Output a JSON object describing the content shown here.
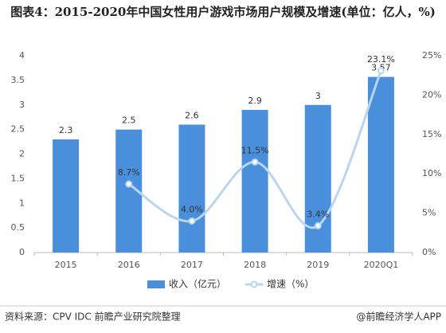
{
  "chart_data": {
    "type": "bar-line",
    "title": "图表4：2015-2020年中国女性用户游戏市场用户规模及增速(单位：亿人，%)",
    "categories": [
      "2015",
      "2016",
      "2017",
      "2018",
      "2019",
      "2020Q1"
    ],
    "series": [
      {
        "name": "收入（亿元）",
        "type": "bar",
        "color": "#4a8fdc",
        "values": [
          2.3,
          2.5,
          2.6,
          2.9,
          3,
          3.57
        ]
      },
      {
        "name": "增速（%）",
        "type": "line",
        "axis": "y2",
        "color": "#b9d5f0",
        "values": [
          null,
          8.7,
          4.0,
          11.5,
          3.4,
          23.1
        ],
        "value_labels": [
          null,
          "8.7%",
          "4.0%",
          "11.5%",
          "3.4%",
          "23.1%"
        ]
      }
    ],
    "ylim": [
      0,
      4
    ],
    "yticks": [
      0,
      0.5,
      1,
      1.5,
      2,
      2.5,
      3,
      3.5,
      4
    ],
    "y2lim": [
      0,
      25
    ],
    "y2ticks": [
      {
        "value": 0,
        "label": "0%"
      },
      {
        "value": 5,
        "label": "5%"
      },
      {
        "value": 10,
        "label": "10%"
      },
      {
        "value": 15,
        "label": "15%"
      },
      {
        "value": 20,
        "label": "20%"
      },
      {
        "value": 25,
        "label": "25%"
      }
    ],
    "grid": false,
    "legend": "bottom",
    "source": "资料来源：CPV IDC 前瞻产业研究院整理",
    "credit": "@前瞻经济学人APP"
  }
}
